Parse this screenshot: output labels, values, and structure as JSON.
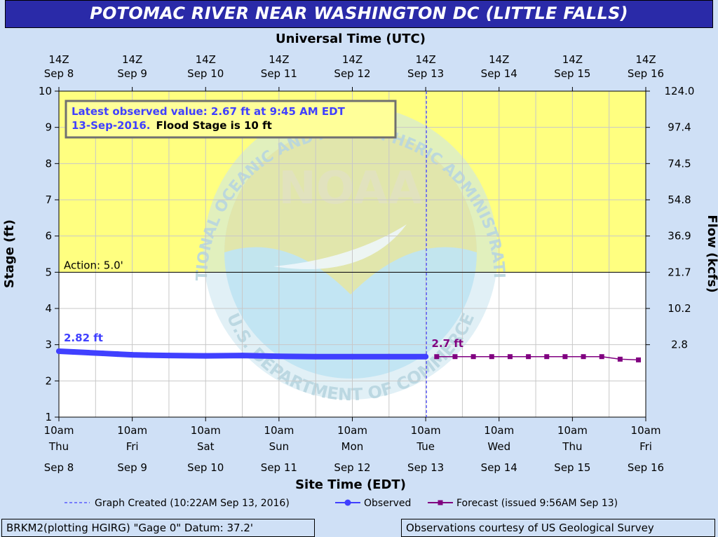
{
  "title": "POTOMAC RIVER NEAR WASHINGTON DC (LITTLE FALLS)",
  "top_axis_title": "Universal Time (UTC)",
  "bottom_axis_title": "Site Time (EDT)",
  "left_axis_title": "Stage (ft)",
  "right_axis_title": "Flow (kcfs)",
  "top_ticks": [
    [
      "14Z",
      "Sep  8"
    ],
    [
      "14Z",
      "Sep  9"
    ],
    [
      "14Z",
      "Sep 10"
    ],
    [
      "14Z",
      "Sep 11"
    ],
    [
      "14Z",
      "Sep 12"
    ],
    [
      "14Z",
      "Sep 13"
    ],
    [
      "14Z",
      "Sep 14"
    ],
    [
      "14Z",
      "Sep 15"
    ],
    [
      "14Z",
      "Sep 16"
    ]
  ],
  "bottom_ticks": [
    [
      "10am",
      "Thu",
      "Sep 8"
    ],
    [
      "10am",
      "Fri",
      "Sep 9"
    ],
    [
      "10am",
      "Sat",
      "Sep 10"
    ],
    [
      "10am",
      "Sun",
      "Sep 11"
    ],
    [
      "10am",
      "Mon",
      "Sep 12"
    ],
    [
      "10am",
      "Tue",
      "Sep 13"
    ],
    [
      "10am",
      "Wed",
      "Sep 14"
    ],
    [
      "10am",
      "Thu",
      "Sep 15"
    ],
    [
      "10am",
      "Fri",
      "Sep 16"
    ]
  ],
  "info_box": {
    "line1": "Latest observed value: 2.67 ft at 9:45 AM EDT",
    "line2a": "13-Sep-2016.",
    "line2b": "Flood Stage is 10 ft"
  },
  "action_label": "Action:  5.0'",
  "observed_label": "2.82 ft",
  "forecast_label": "2.7 ft",
  "legend": {
    "created": "Graph Created (10:22AM Sep 13, 2016)",
    "observed": "Observed",
    "forecast": "Forecast (issued 9:56AM Sep 13)"
  },
  "footer_left": "BRKM2(plotting HGIRG) \"Gage 0\" Datum: 37.2'",
  "footer_right": "Observations courtesy of US Geological Survey",
  "watermark": {
    "logo": "NOAA",
    "top_text": "NATIONAL OCEANIC AND ATMOSPHERIC ADMINISTRATION",
    "bottom_text": "U.S. DEPARTMENT OF COMMERCE"
  },
  "colors": {
    "action_zone": "#ffff80",
    "observed": "#4040ff",
    "forecast": "#800080",
    "created_line": "#4040ff",
    "title_bg": "#2a2aa8",
    "page_bg": "#cfe0f6"
  },
  "chart_data": {
    "type": "line",
    "x_unit": "days since Sep 8 10am EDT",
    "xlim": [
      0,
      8
    ],
    "ylim": [
      1,
      10
    ],
    "yticks": [
      1,
      2,
      3,
      4,
      5,
      6,
      7,
      8,
      9,
      10
    ],
    "flow_ticks": [
      {
        "stage": 10,
        "label": "124.0"
      },
      {
        "stage": 9,
        "label": "97.4"
      },
      {
        "stage": 8,
        "label": "74.5"
      },
      {
        "stage": 7,
        "label": "54.8"
      },
      {
        "stage": 6,
        "label": "36.9"
      },
      {
        "stage": 5,
        "label": "21.7"
      },
      {
        "stage": 4,
        "label": "10.2"
      },
      {
        "stage": 3,
        "label": "2.8"
      }
    ],
    "action_stage": 5.0,
    "graph_created_x": 5.01,
    "series": [
      {
        "name": "Observed",
        "x": [
          0,
          0.2,
          0.4,
          0.6,
          0.8,
          1.0,
          1.2,
          1.5,
          2.0,
          2.5,
          3.0,
          3.5,
          4.0,
          4.5,
          5.0
        ],
        "y": [
          2.82,
          2.8,
          2.78,
          2.76,
          2.74,
          2.72,
          2.71,
          2.7,
          2.69,
          2.7,
          2.68,
          2.67,
          2.67,
          2.67,
          2.67
        ]
      },
      {
        "name": "Forecast",
        "x": [
          5.15,
          5.4,
          5.65,
          5.9,
          6.15,
          6.4,
          6.65,
          6.9,
          7.15,
          7.4,
          7.65,
          7.9
        ],
        "y": [
          2.67,
          2.67,
          2.67,
          2.67,
          2.67,
          2.67,
          2.67,
          2.67,
          2.67,
          2.67,
          2.6,
          2.58
        ]
      }
    ]
  }
}
